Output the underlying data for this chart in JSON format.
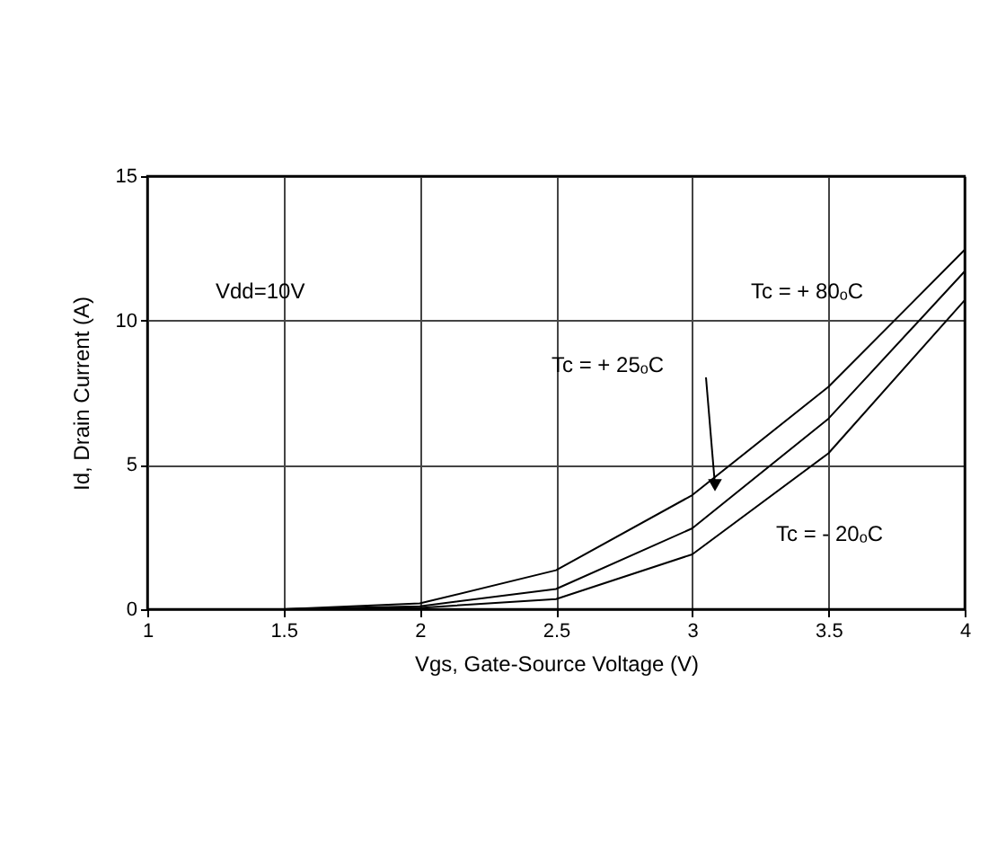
{
  "chart_data": {
    "type": "line",
    "xlabel": "Vgs, Gate-Source Voltage (V)",
    "ylabel": "Id, Drain Current (A)",
    "x": [
      1,
      1.5,
      2,
      2.5,
      3,
      3.5,
      4
    ],
    "series": [
      {
        "name": "Tc = + 80ₒC",
        "color": "#000000",
        "values": [
          0,
          0,
          0.2,
          1.35,
          3.95,
          7.7,
          12.45
        ]
      },
      {
        "color": "#000000",
        "values": [
          0,
          0,
          0.1,
          0.7,
          2.8,
          6.6,
          11.7
        ]
      },
      {
        "name": "Tc = - 20ₒC",
        "color": "#000000",
        "values": [
          0,
          0,
          0.05,
          0.35,
          1.9,
          5.4,
          10.7
        ]
      }
    ],
    "annotations": [
      "Vdd=10V",
      "Tc = + 25ₒC"
    ],
    "xlim": [
      1,
      4
    ],
    "xticks": [
      1,
      1.5,
      2,
      2.5,
      3,
      3.5,
      4
    ],
    "ylim": [
      0,
      15
    ],
    "yticks": [
      0,
      5,
      10,
      15
    ],
    "grid": true,
    "legend": false,
    "marker": "none",
    "line_style": "solid"
  }
}
